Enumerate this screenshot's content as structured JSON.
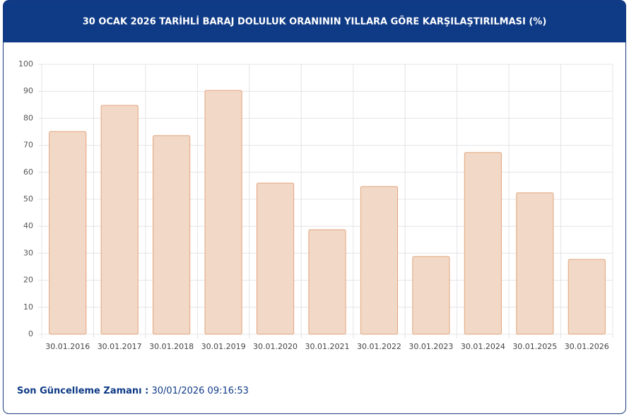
{
  "chart_data": {
    "type": "bar",
    "title": "30 OCAK 2026 TARİHLİ BARAJ DOLULUK ORANININ YILLARA GÖRE KARŞILAŞTIRILMASI (%)",
    "categories": [
      "30.01.2016",
      "30.01.2017",
      "30.01.2018",
      "30.01.2019",
      "30.01.2020",
      "30.01.2021",
      "30.01.2022",
      "30.01.2023",
      "30.01.2024",
      "30.01.2025",
      "30.01.2026"
    ],
    "values": [
      75.1,
      84.8,
      73.6,
      90.3,
      56.0,
      38.7,
      54.7,
      28.8,
      67.3,
      52.4,
      27.7
    ],
    "color": "#f2d8c6",
    "edge_color": "#e2a57d",
    "ylim": [
      0,
      100
    ],
    "yticks": [
      0,
      10,
      20,
      30,
      40,
      50,
      60,
      70,
      80,
      90,
      100
    ],
    "grid": true
  },
  "footer": {
    "label": "Son Güncelleme Zamanı :",
    "value": "30/01/2026 09:16:53"
  }
}
